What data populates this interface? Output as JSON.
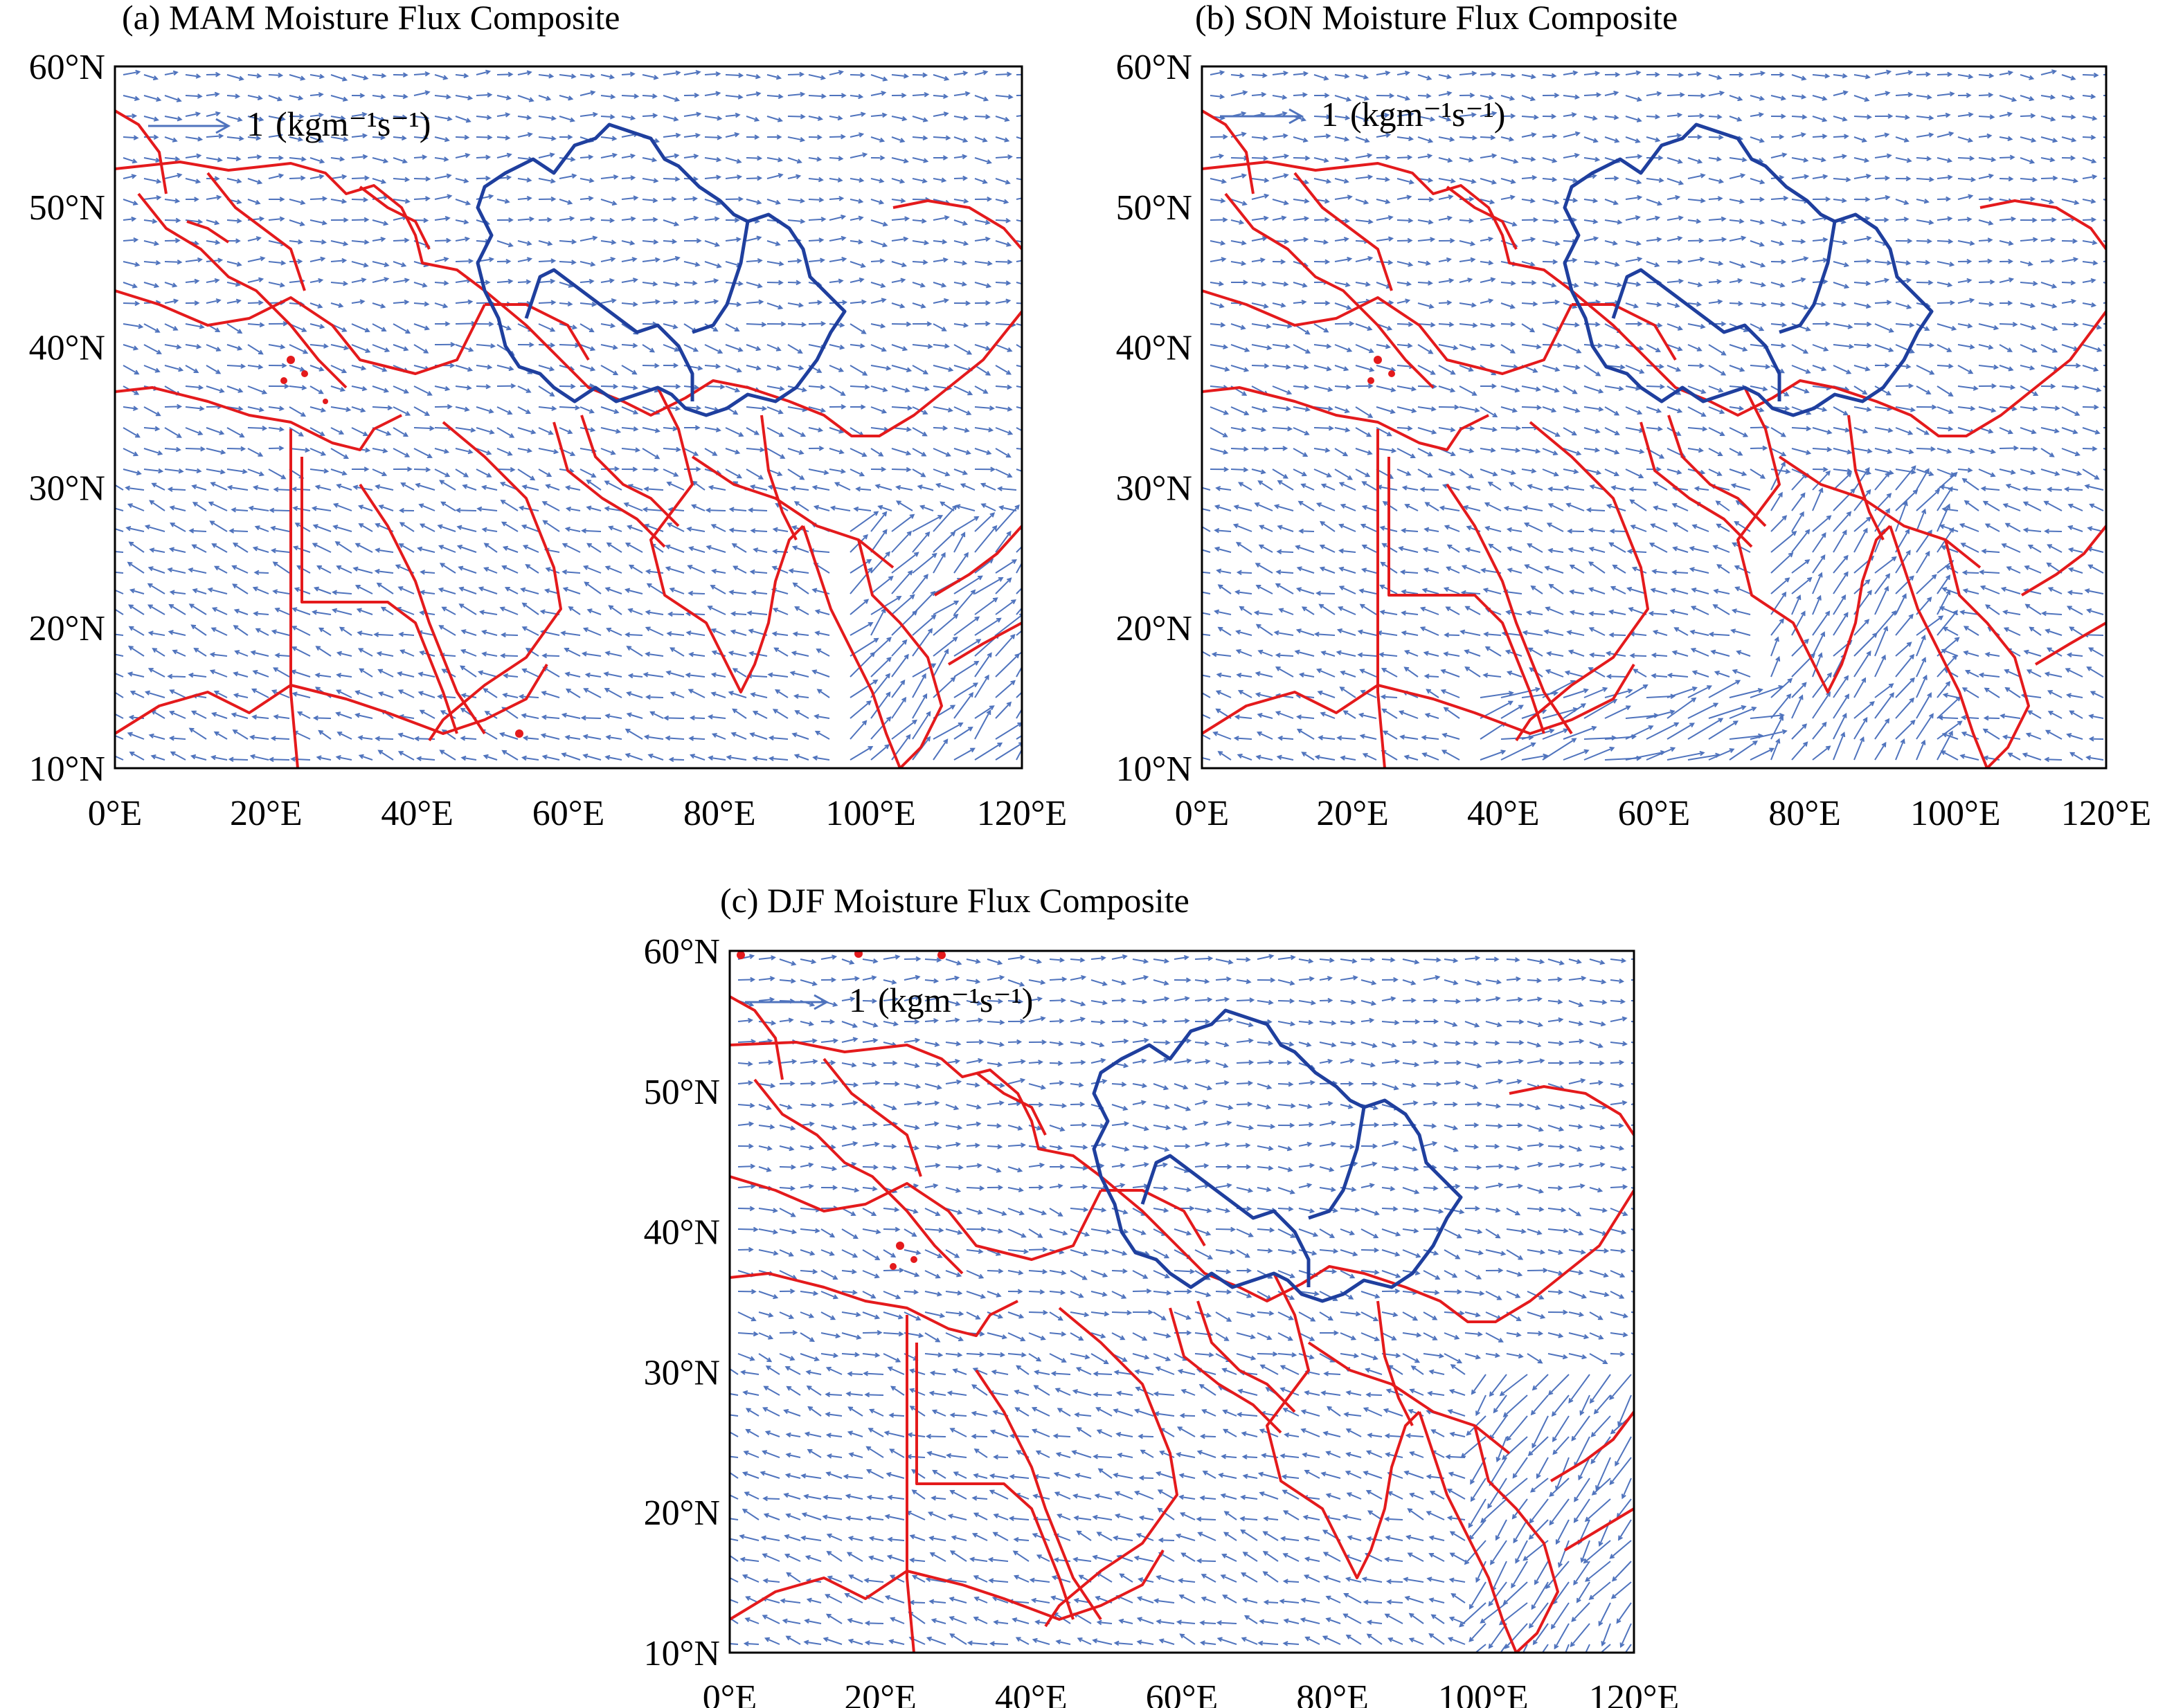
{
  "colors": {
    "vector": "#4f73bd",
    "border": "#e41a1c",
    "basin": "#1f3f9e",
    "frame": "#000000",
    "background": "#ffffff"
  },
  "axes": {
    "x_ticks": [
      "0°E",
      "20°E",
      "40°E",
      "60°E",
      "80°E",
      "100°E",
      "120°E"
    ],
    "y_ticks": [
      "60°N",
      "50°N",
      "40°N",
      "30°N",
      "20°N",
      "10°N"
    ],
    "lon_range": [
      0,
      120
    ],
    "lat_range": [
      10,
      60
    ]
  },
  "panels": [
    {
      "id": "a",
      "title": "(a) MAM Moisture Flux Composite",
      "ref_value": "1",
      "ref_unit": "(kgm⁻¹s⁻¹)",
      "season": "MAM"
    },
    {
      "id": "b",
      "title": "(b) SON Moisture Flux Composite",
      "ref_value": "1",
      "ref_unit": "(kgm⁻¹s⁻¹)",
      "season": "SON"
    },
    {
      "id": "c",
      "title": "(c) DJF Moisture Flux Composite",
      "ref_value": "1",
      "ref_unit": "(kgm⁻¹s⁻¹)",
      "season": "DJF"
    }
  ]
}
